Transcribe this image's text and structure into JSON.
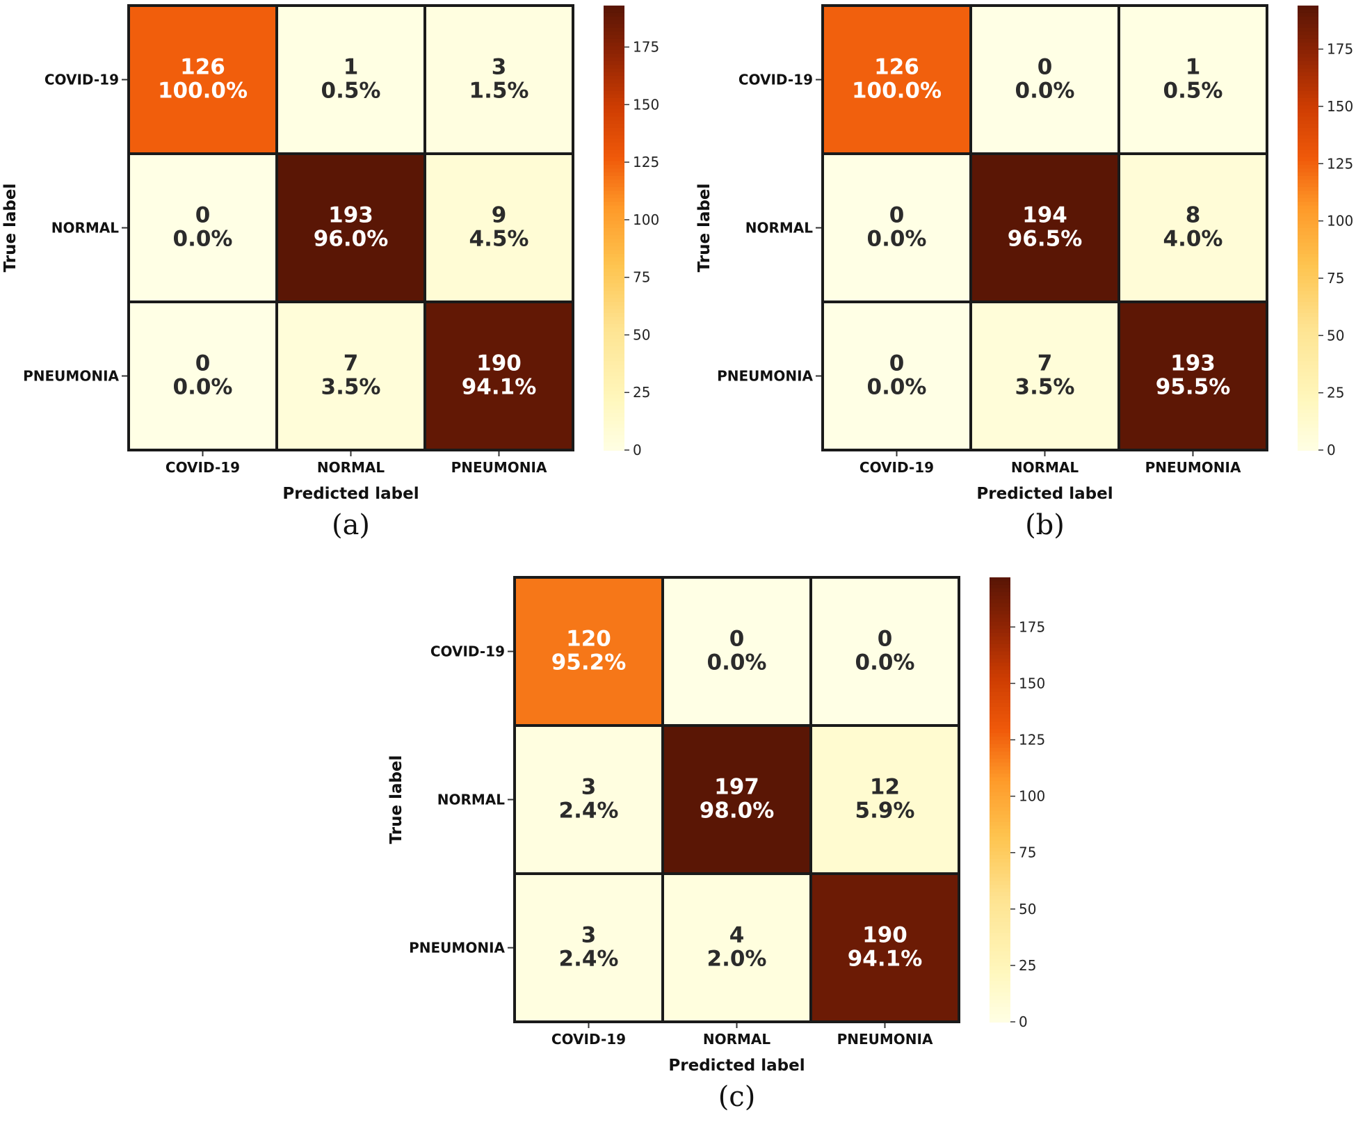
{
  "chart_data": [
    {
      "type": "heatmap",
      "caption": "(a)",
      "x_categories": [
        "COVID-19",
        "NORMAL",
        "PNEUMONIA"
      ],
      "y_categories": [
        "COVID-19",
        "NORMAL",
        "PNEUMONIA"
      ],
      "xlabel": "Predicted label",
      "ylabel": "True label",
      "values": [
        [
          126,
          1,
          3
        ],
        [
          0,
          193,
          9
        ],
        [
          0,
          7,
          190
        ]
      ],
      "percents": [
        [
          "100.0%",
          "0.5%",
          "1.5%"
        ],
        [
          "0.0%",
          "96.0%",
          "4.5%"
        ],
        [
          "0.0%",
          "3.5%",
          "94.1%"
        ]
      ],
      "colorbar": {
        "range": [
          0,
          193
        ],
        "ticks": [
          0,
          25,
          50,
          75,
          100,
          125,
          150,
          175
        ]
      }
    },
    {
      "type": "heatmap",
      "caption": "(b)",
      "x_categories": [
        "COVID-19",
        "NORMAL",
        "PNEUMONIA"
      ],
      "y_categories": [
        "COVID-19",
        "NORMAL",
        "PNEUMONIA"
      ],
      "xlabel": "Predicted label",
      "ylabel": "True label",
      "values": [
        [
          126,
          0,
          1
        ],
        [
          0,
          194,
          8
        ],
        [
          0,
          7,
          193
        ]
      ],
      "percents": [
        [
          "100.0%",
          "0.0%",
          "0.5%"
        ],
        [
          "0.0%",
          "96.5%",
          "4.0%"
        ],
        [
          "0.0%",
          "3.5%",
          "95.5%"
        ]
      ],
      "colorbar": {
        "range": [
          0,
          194
        ],
        "ticks": [
          0,
          25,
          50,
          75,
          100,
          125,
          150,
          175
        ]
      }
    },
    {
      "type": "heatmap",
      "caption": "(c)",
      "x_categories": [
        "COVID-19",
        "NORMAL",
        "PNEUMONIA"
      ],
      "y_categories": [
        "COVID-19",
        "NORMAL",
        "PNEUMONIA"
      ],
      "xlabel": "Predicted label",
      "ylabel": "True label",
      "values": [
        [
          120,
          0,
          0
        ],
        [
          3,
          197,
          12
        ],
        [
          3,
          4,
          190
        ]
      ],
      "percents": [
        [
          "95.2%",
          "0.0%",
          "0.0%"
        ],
        [
          "2.4%",
          "98.0%",
          "5.9%"
        ],
        [
          "2.4%",
          "2.0%",
          "94.1%"
        ]
      ],
      "colorbar": {
        "range": [
          0,
          197
        ],
        "ticks": [
          0,
          25,
          50,
          75,
          100,
          125,
          150,
          175
        ]
      }
    }
  ]
}
